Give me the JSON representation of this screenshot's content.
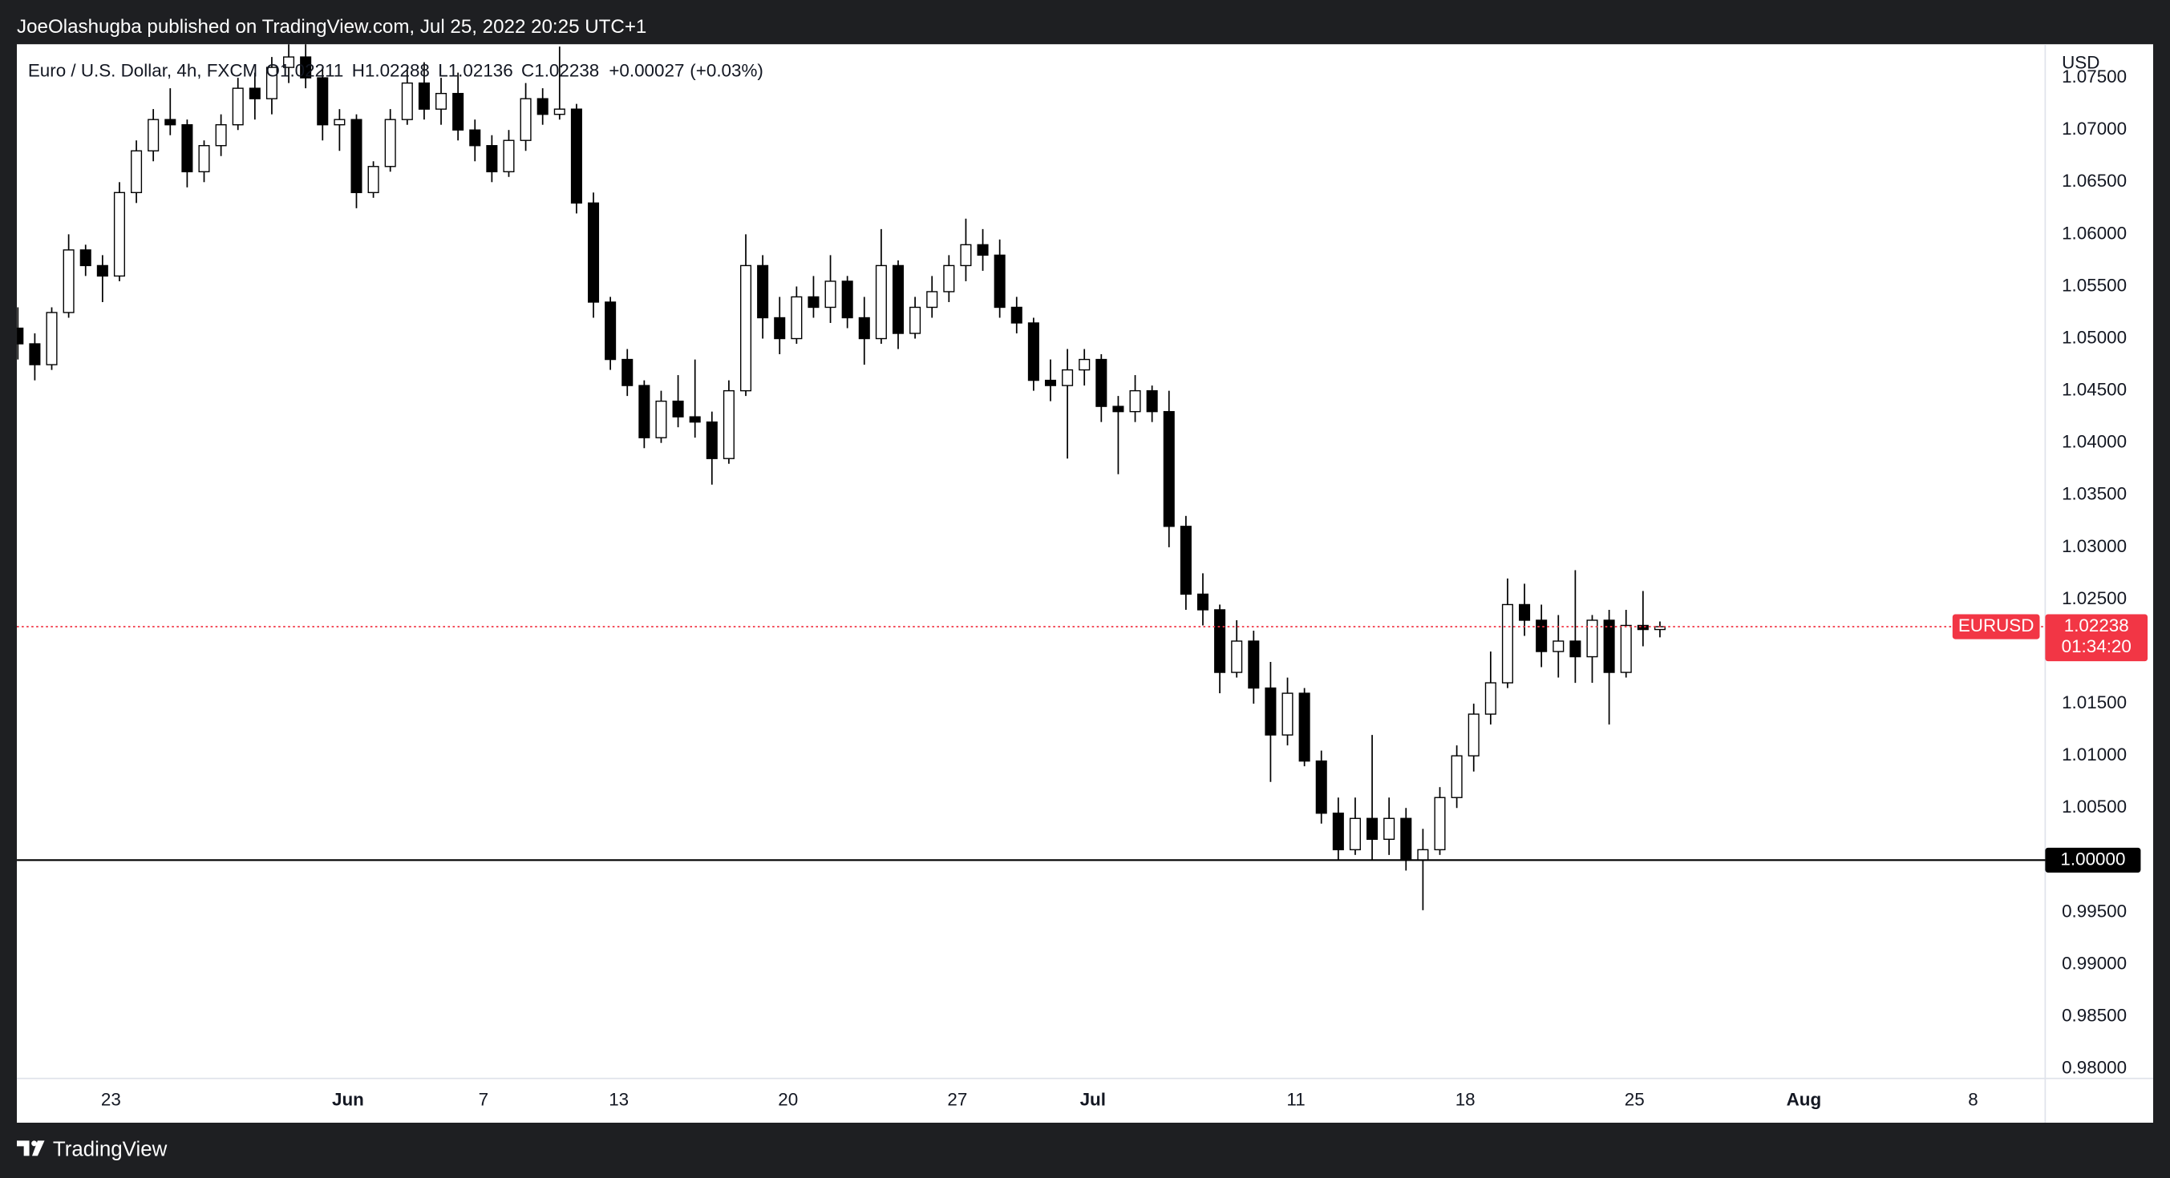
{
  "header": {
    "publisher_line": "JoeOlashugba published on TradingView.com, Jul 25, 2022 20:25 UTC+1"
  },
  "footer": {
    "brand": "TradingView"
  },
  "chart_data": {
    "type": "candlestick",
    "title": "Euro / U.S. Dollar, 4h, FXCM",
    "ohlc_prefixes": [
      "O",
      "H",
      "L",
      "C"
    ],
    "change": {
      "value": 0.00027,
      "label": "+0.00027"
    },
    "change_percent": {
      "value": 0.03,
      "label": "(+0.03%)"
    },
    "currency": "USD",
    "countdown": "01:34:20",
    "last_price_color": "#f23645",
    "hlines": [
      {
        "value": 1,
        "label": "1.00000",
        "color": "#000000"
      }
    ],
    "x": [
      -2.75,
      -2.25,
      -1.75,
      -1.25,
      -0.75,
      -0.25,
      0.25,
      0.75,
      1.25,
      1.75,
      2.25,
      2.75,
      3.25,
      3.75,
      4.25,
      4.75,
      5.25,
      5.75,
      6.25,
      6.75,
      7.25,
      7.75,
      8.25,
      8.75,
      9.25,
      9.75,
      10.25,
      10.75,
      11.25,
      11.75,
      12.25,
      12.75,
      13.25,
      13.75,
      14.25,
      14.75,
      15.25,
      15.75,
      16.25,
      16.75,
      17.25,
      17.75,
      18.25,
      18.75,
      19.25,
      19.75,
      20.25,
      20.75,
      21.25,
      21.75,
      22.25,
      22.75,
      23.25,
      23.75,
      24.25,
      24.75,
      25.25,
      25.75,
      26.25,
      26.75,
      27.25,
      27.75,
      28.25,
      28.75,
      29.25,
      29.75,
      30.25,
      30.75,
      31.25,
      31.75,
      32.25,
      32.75,
      33.25,
      33.75,
      34.25,
      34.75,
      35.25,
      35.75,
      36.25,
      36.75,
      37.25,
      37.75,
      38.25,
      38.75,
      39.25,
      39.75,
      40.25,
      40.75,
      41.25,
      41.75,
      42.25,
      42.75,
      43.25,
      43.75,
      44.25,
      44.75,
      45.25,
      45.75
    ],
    "xlim": [
      -2.78,
      57.13
    ],
    "xticks": [
      {
        "value": 0,
        "label": "23"
      },
      {
        "value": 7,
        "label": "Jun"
      },
      {
        "value": 11,
        "label": "7"
      },
      {
        "value": 15,
        "label": "13"
      },
      {
        "value": 20,
        "label": "20"
      },
      {
        "value": 25,
        "label": "27"
      },
      {
        "value": 29,
        "label": "Jul"
      },
      {
        "value": 35,
        "label": "11"
      },
      {
        "value": 40,
        "label": "18"
      },
      {
        "value": 45,
        "label": "25"
      },
      {
        "value": 50,
        "label": "Aug"
      },
      {
        "value": 55,
        "label": "8"
      }
    ],
    "ylim": [
      0.97907,
      1.07822
    ],
    "yticks": [
      {
        "value": 0.98,
        "label": "0.98000"
      },
      {
        "value": 0.985,
        "label": "0.98500"
      },
      {
        "value": 0.99,
        "label": "0.99000"
      },
      {
        "value": 0.995,
        "label": "0.99500"
      },
      {
        "value": 1.005,
        "label": "1.00500"
      },
      {
        "value": 1.01,
        "label": "1.01000"
      },
      {
        "value": 1.015,
        "label": "1.01500"
      },
      {
        "value": 1.025,
        "label": "1.02500"
      },
      {
        "value": 1.03,
        "label": "1.03000"
      },
      {
        "value": 1.035,
        "label": "1.03500"
      },
      {
        "value": 1.04,
        "label": "1.04000"
      },
      {
        "value": 1.045,
        "label": "1.04500"
      },
      {
        "value": 1.05,
        "label": "1.05000"
      },
      {
        "value": 1.055,
        "label": "1.05500"
      },
      {
        "value": 1.06,
        "label": "1.06000"
      },
      {
        "value": 1.065,
        "label": "1.06500"
      },
      {
        "value": 1.07,
        "label": "1.07000"
      },
      {
        "value": 1.075,
        "label": "1.07500"
      }
    ],
    "series": [
      {
        "name": "EURUSD",
        "up_color": "#ffffff",
        "down_color": "#000000",
        "wick_color": "#000000",
        "open": [
          1.051,
          1.0495,
          1.0475,
          1.0525,
          1.0585,
          1.057,
          1.056,
          1.064,
          1.068,
          1.071,
          1.0705,
          1.066,
          1.0685,
          1.0705,
          1.074,
          1.073,
          1.076,
          1.077,
          1.075,
          1.0705,
          1.071,
          1.064,
          1.0665,
          1.071,
          1.0745,
          1.072,
          1.0735,
          1.07,
          1.0685,
          1.066,
          1.069,
          1.073,
          1.0715,
          1.072,
          1.063,
          1.0535,
          1.048,
          1.0455,
          1.0405,
          1.044,
          1.0425,
          1.042,
          1.0385,
          1.045,
          1.057,
          1.052,
          1.05,
          1.054,
          1.053,
          1.0555,
          1.052,
          1.05,
          1.057,
          1.0505,
          1.053,
          1.0545,
          1.057,
          1.059,
          1.058,
          1.053,
          1.0515,
          1.046,
          1.0455,
          1.047,
          1.048,
          1.0435,
          1.043,
          1.045,
          1.043,
          1.032,
          1.0255,
          1.024,
          1.018,
          1.021,
          1.0165,
          1.012,
          1.016,
          1.0095,
          1.0045,
          1.001,
          1.004,
          1.002,
          1.004,
          1.0,
          1.001,
          1.006,
          1.01,
          1.014,
          1.017,
          1.0245,
          1.023,
          1.02,
          1.021,
          1.0195,
          1.023,
          1.018,
          1.0225,
          1.02211
        ],
        "high": [
          1.053,
          1.0505,
          1.053,
          1.06,
          1.059,
          1.058,
          1.065,
          1.069,
          1.072,
          1.074,
          1.071,
          1.069,
          1.0715,
          1.075,
          1.0755,
          1.077,
          1.079,
          1.0785,
          1.076,
          1.072,
          1.0715,
          1.067,
          1.072,
          1.076,
          1.0765,
          1.075,
          1.0755,
          1.071,
          1.0695,
          1.07,
          1.0745,
          1.074,
          1.078,
          1.0725,
          1.064,
          1.054,
          1.049,
          1.046,
          1.045,
          1.0465,
          1.048,
          1.043,
          1.046,
          1.06,
          1.058,
          1.054,
          1.055,
          1.056,
          1.058,
          1.056,
          1.054,
          1.0605,
          1.0575,
          1.054,
          1.056,
          1.058,
          1.0615,
          1.0605,
          1.0595,
          1.054,
          1.052,
          1.048,
          1.049,
          1.049,
          1.0485,
          1.0445,
          1.0465,
          1.0455,
          1.045,
          1.033,
          1.0275,
          1.0245,
          1.023,
          1.022,
          1.019,
          1.0175,
          1.0165,
          1.0105,
          1.006,
          1.006,
          1.012,
          1.006,
          1.005,
          1.003,
          1.007,
          1.011,
          1.015,
          1.02,
          1.027,
          1.0265,
          1.0245,
          1.0235,
          1.0278,
          1.0235,
          1.024,
          1.024,
          1.0258,
          1.02288
        ],
        "low": [
          1.048,
          1.046,
          1.047,
          1.052,
          1.056,
          1.0535,
          1.0555,
          1.063,
          1.067,
          1.0695,
          1.0645,
          1.065,
          1.0675,
          1.07,
          1.071,
          1.0715,
          1.0745,
          1.074,
          1.069,
          1.068,
          1.0625,
          1.0635,
          1.066,
          1.0705,
          1.071,
          1.0705,
          1.069,
          1.067,
          1.065,
          1.0655,
          1.068,
          1.0705,
          1.071,
          1.062,
          1.052,
          1.047,
          1.0445,
          1.0395,
          1.04,
          1.0415,
          1.0405,
          1.036,
          1.038,
          1.0445,
          1.05,
          1.0485,
          1.0495,
          1.052,
          1.0515,
          1.051,
          1.0475,
          1.0495,
          1.049,
          1.05,
          1.052,
          1.0535,
          1.0555,
          1.0565,
          1.052,
          1.0505,
          1.045,
          1.044,
          1.0385,
          1.0455,
          1.042,
          1.037,
          1.042,
          1.042,
          1.03,
          1.024,
          1.0225,
          1.016,
          1.0175,
          1.015,
          1.0075,
          1.011,
          1.009,
          1.0035,
          1.0,
          1.0005,
          1.0,
          1.0005,
          0.999,
          0.9952,
          1.0005,
          1.005,
          1.0085,
          1.013,
          1.0165,
          1.0215,
          1.0185,
          1.0175,
          1.017,
          1.017,
          1.013,
          1.0175,
          1.0205,
          1.02136
        ],
        "close": [
          1.0495,
          1.0475,
          1.0525,
          1.0585,
          1.057,
          1.056,
          1.064,
          1.068,
          1.071,
          1.0705,
          1.066,
          1.0685,
          1.0705,
          1.074,
          1.073,
          1.076,
          1.077,
          1.075,
          1.0705,
          1.071,
          1.064,
          1.0665,
          1.071,
          1.0745,
          1.072,
          1.0735,
          1.07,
          1.0685,
          1.066,
          1.069,
          1.073,
          1.0715,
          1.072,
          1.063,
          1.0535,
          1.048,
          1.0455,
          1.0405,
          1.044,
          1.0425,
          1.042,
          1.0385,
          1.045,
          1.057,
          1.052,
          1.05,
          1.054,
          1.053,
          1.0555,
          1.052,
          1.05,
          1.057,
          1.0505,
          1.053,
          1.0545,
          1.057,
          1.059,
          1.058,
          1.053,
          1.0515,
          1.046,
          1.0455,
          1.047,
          1.048,
          1.0435,
          1.043,
          1.045,
          1.043,
          1.032,
          1.0255,
          1.024,
          1.018,
          1.021,
          1.0165,
          1.012,
          1.016,
          1.0095,
          1.0045,
          1.001,
          1.004,
          1.002,
          1.004,
          1.0,
          1.001,
          1.006,
          1.01,
          1.014,
          1.017,
          1.0245,
          1.023,
          1.02,
          1.021,
          1.0195,
          1.023,
          1.018,
          1.0225,
          1.02211,
          1.02238
        ]
      }
    ]
  }
}
